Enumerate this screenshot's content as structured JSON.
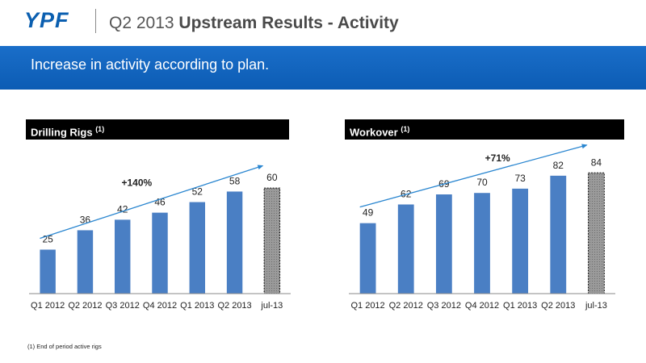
{
  "header": {
    "logo": "YPF",
    "title_prefix": "Q2 2013 ",
    "title_bold": "Upstream Results - Activity"
  },
  "banner": {
    "text": "Increase in activity according to plan."
  },
  "panels": {
    "left": {
      "title": "Drilling Rigs",
      "note_ref": "(1)"
    },
    "right": {
      "title": "Workover",
      "note_ref": "(1)"
    }
  },
  "footnote": "(1) End of period active rigs",
  "colors": {
    "bar": "#4a7fc4",
    "estimate_bar": "#9a9a9a",
    "trend": "#2a86d0",
    "banner": "#0c5cb4"
  },
  "chart_data": [
    {
      "type": "bar",
      "categories": [
        "Q1 2012",
        "Q2 2012",
        "Q3 2012",
        "Q4 2012",
        "Q1 2013",
        "Q2 2013",
        "jul-13"
      ],
      "values": [
        25,
        36,
        42,
        46,
        52,
        58,
        60
      ],
      "estimate_index": 6,
      "annotation": "+140%",
      "ylim": [
        0,
        66
      ],
      "grid": false,
      "legend": "none"
    },
    {
      "type": "bar",
      "categories": [
        "Q1 2012",
        "Q2 2012",
        "Q3 2012",
        "Q4 2012",
        "Q1 2013",
        "Q2 2013",
        "jul-13"
      ],
      "values": [
        49,
        62,
        69,
        70,
        73,
        82,
        84
      ],
      "estimate_index": 6,
      "annotation": "+71%",
      "ylim": [
        0,
        92
      ],
      "grid": false,
      "legend": "none"
    }
  ]
}
